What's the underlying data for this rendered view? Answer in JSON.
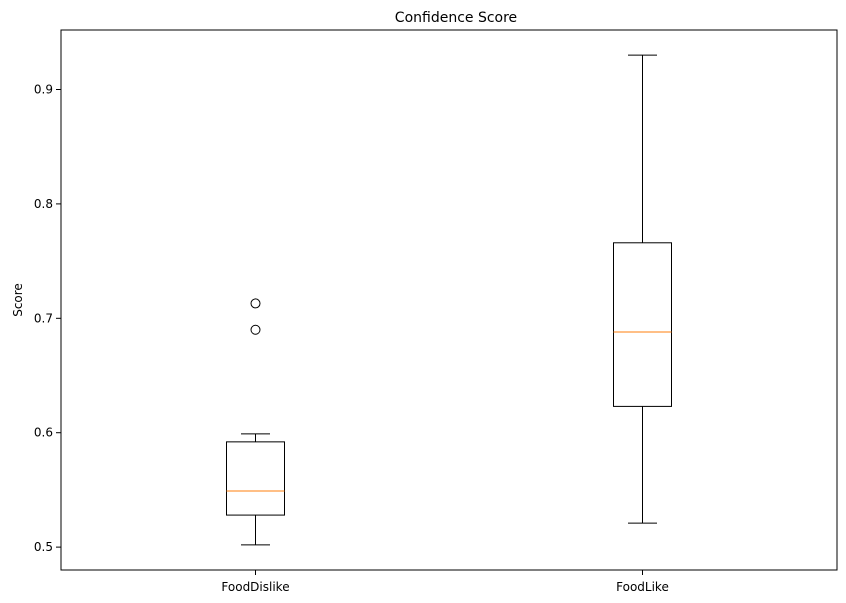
{
  "chart_data": {
    "type": "boxplot",
    "title": "Confidence Score",
    "xlabel": "",
    "ylabel": "Score",
    "categories": [
      "FoodDislike",
      "FoodLike"
    ],
    "ylim": [
      0.48,
      0.952
    ],
    "yticks": [
      0.5,
      0.6,
      0.7,
      0.8,
      0.9
    ],
    "ytick_labels": [
      "0.5",
      "0.6",
      "0.7",
      "0.8",
      "0.9"
    ],
    "boxes": [
      {
        "category": "FoodDislike",
        "whisker_low": 0.502,
        "q1": 0.528,
        "median": 0.549,
        "q3": 0.592,
        "whisker_high": 0.599,
        "outliers": [
          0.69,
          0.713
        ]
      },
      {
        "category": "FoodLike",
        "whisker_low": 0.521,
        "q1": 0.623,
        "median": 0.688,
        "q3": 0.766,
        "whisker_high": 0.93,
        "outliers": []
      }
    ],
    "grid": false,
    "colors": {
      "box": "#000000",
      "median": "#ff7f0e",
      "outlier": "#000000"
    }
  }
}
